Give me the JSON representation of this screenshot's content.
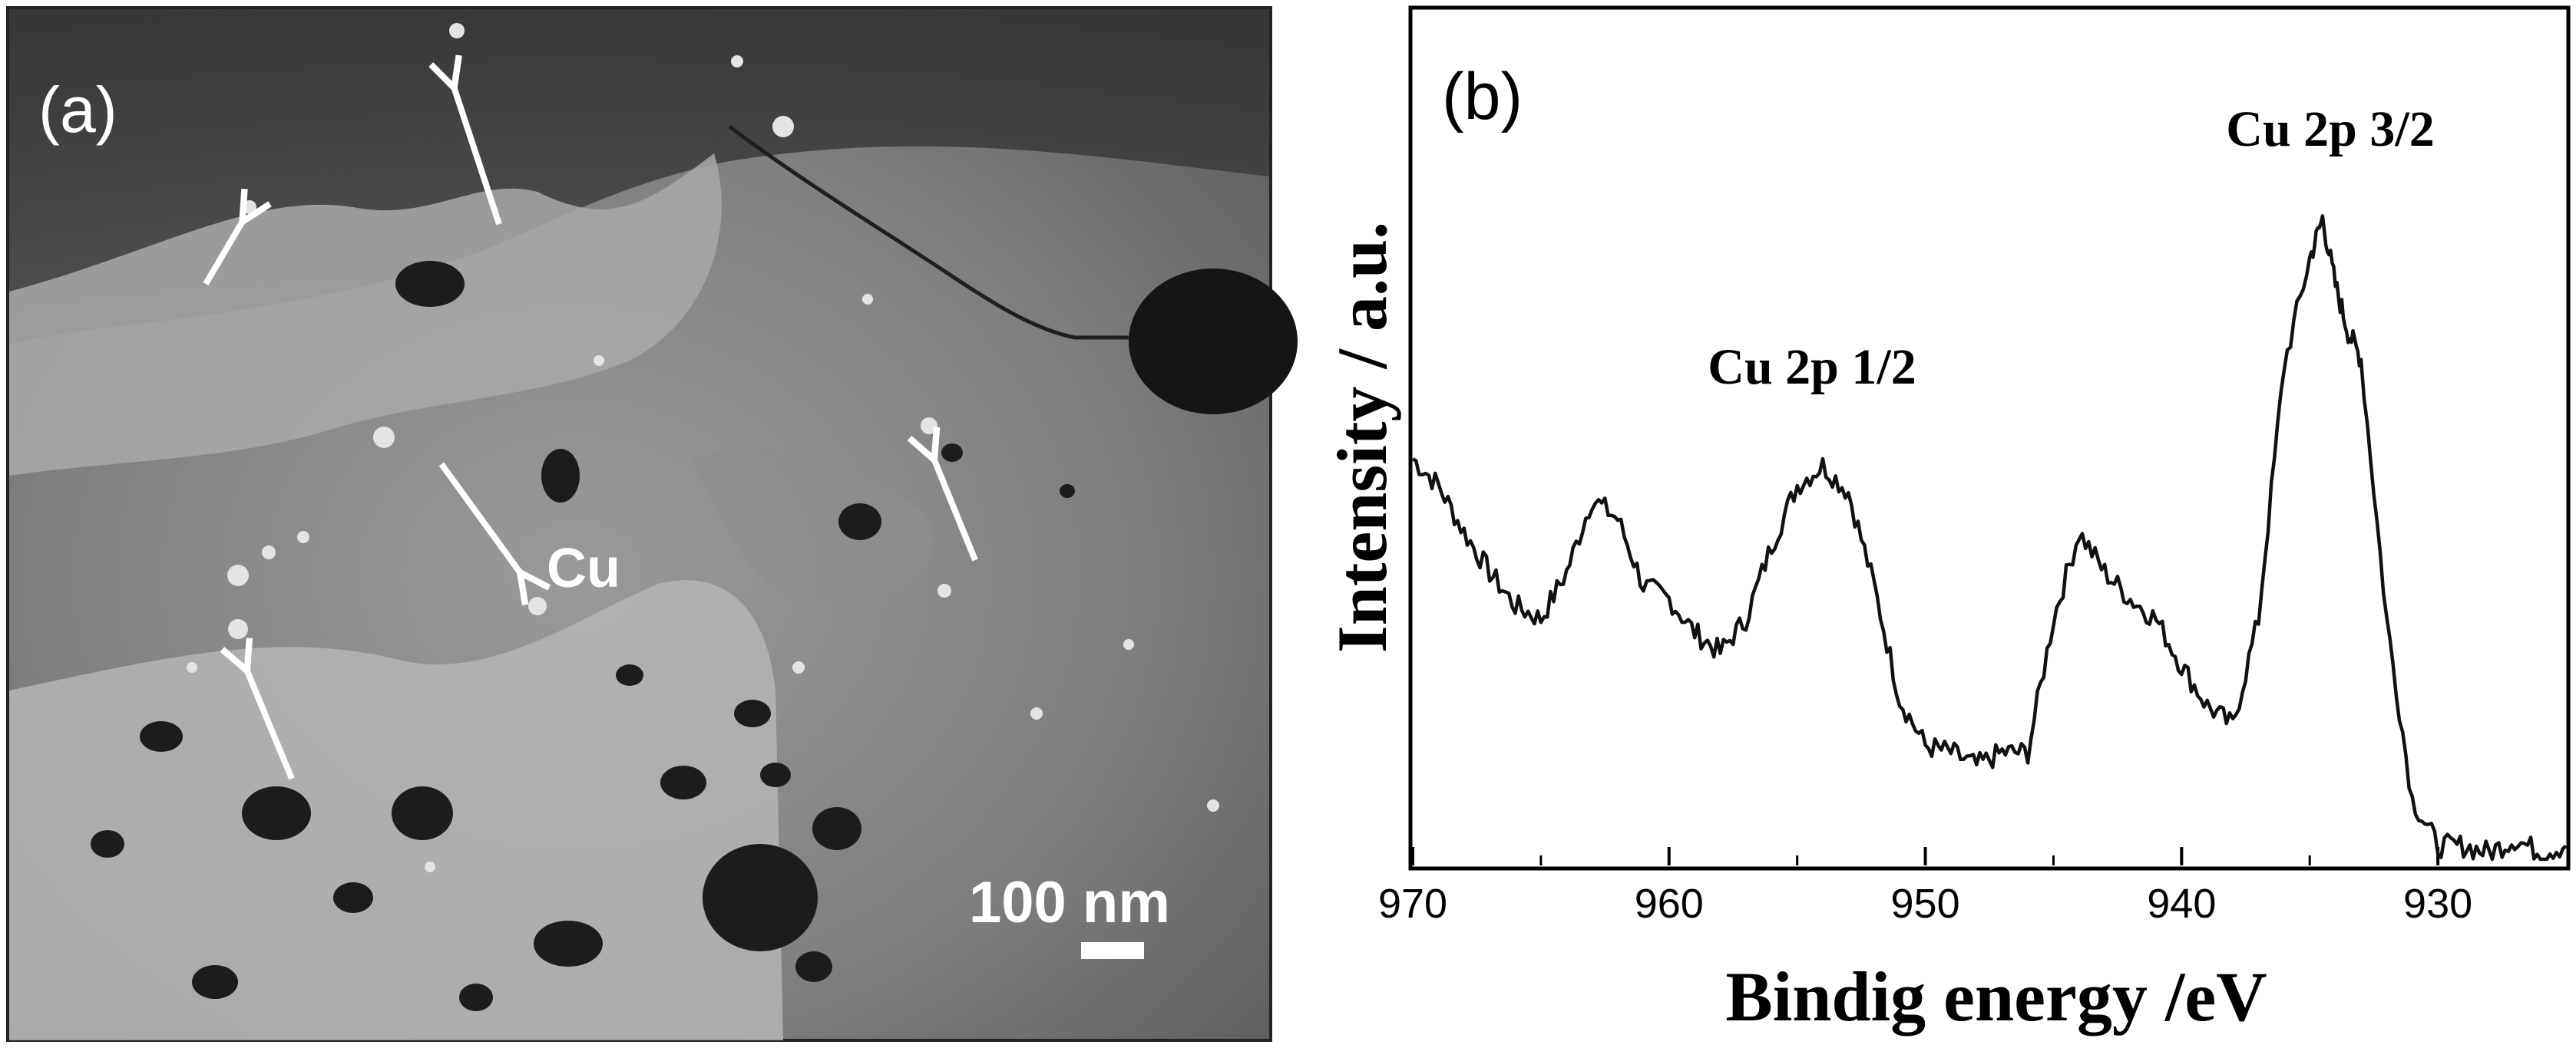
{
  "panel_a": {
    "label": "(a)",
    "particle_label": "Cu",
    "scale_bar_label": "100 nm"
  },
  "panel_b": {
    "label": "(b)",
    "annotations": [
      "Cu 2p 3/2",
      "Cu 2p 1/2"
    ]
  },
  "chart_data": {
    "type": "line",
    "title": "",
    "xlabel": "Bindig energy /eV",
    "ylabel": "Intensity / a.u.",
    "xlim": [
      970,
      925
    ],
    "ylim": [
      0,
      10
    ],
    "x_reversed": true,
    "y_tick_labels": false,
    "grid": false,
    "legend": "none",
    "xticks": [
      970,
      960,
      950,
      940,
      930
    ],
    "annotations": [
      {
        "text": "Cu 2p 3/2",
        "x": 934.3,
        "y": 9.3
      },
      {
        "text": "Cu 2p 1/2",
        "x": 953.5,
        "y": 6.2
      }
    ],
    "series": [
      {
        "x": [
          970,
          969,
          968,
          967,
          966,
          965,
          964,
          963,
          962,
          961,
          960,
          959,
          958,
          957,
          956,
          955,
          954,
          953,
          952,
          951,
          950,
          949,
          948,
          947,
          946,
          945,
          944,
          943,
          942,
          941,
          940,
          939,
          938,
          937,
          936,
          935,
          934.5,
          934,
          933.5,
          933,
          932,
          931,
          930,
          929,
          928,
          927,
          926,
          925
        ],
        "y": [
          6.0,
          5.6,
          4.9,
          4.3,
          3.8,
          3.6,
          4.3,
          5.4,
          5.1,
          4.1,
          3.9,
          3.4,
          3.1,
          3.6,
          4.7,
          5.6,
          5.9,
          5.5,
          4.1,
          2.4,
          1.7,
          1.6,
          1.4,
          1.6,
          1.6,
          3.6,
          4.9,
          4.3,
          3.9,
          3.6,
          2.9,
          2.3,
          2.0,
          3.6,
          7.4,
          9.0,
          9.6,
          8.6,
          7.9,
          7.5,
          3.6,
          0.9,
          0.2,
          0.2,
          0.1,
          0.3,
          0.1,
          0.2
        ]
      }
    ],
    "color": "#111111"
  }
}
